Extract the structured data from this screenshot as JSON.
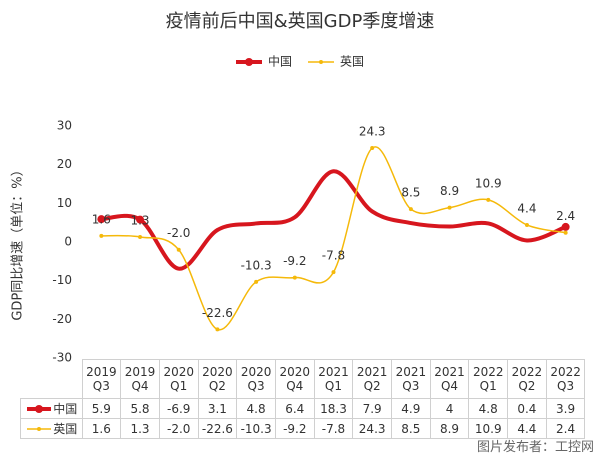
{
  "chart_data": {
    "type": "line",
    "title": "疫情前后中国&英国GDP季度增速",
    "y_label": "GDP同比增速（单位：%）",
    "categories": [
      "2019\nQ3",
      "2019\nQ4",
      "2020\nQ1",
      "2020\nQ2",
      "2020\nQ3",
      "2020\nQ4",
      "2021\nQ1",
      "2021\nQ2",
      "2021\nQ3",
      "2021\nQ4",
      "2022\nQ1",
      "2022\nQ2",
      "2022\nQ3"
    ],
    "series": [
      {
        "name": "中国",
        "color": "#d7161e",
        "values": [
          5.9,
          5.8,
          -6.9,
          3.1,
          4.8,
          6.4,
          18.3,
          7.9,
          4.9,
          4,
          4.8,
          0.4,
          3.9
        ]
      },
      {
        "name": "英国",
        "color": "#f5b90a",
        "values": [
          1.6,
          1.3,
          -2.0,
          -22.6,
          -10.3,
          -9.2,
          -7.8,
          24.3,
          8.5,
          8.9,
          10.9,
          4.4,
          2.4
        ],
        "value_labels": [
          "1.6",
          "1.3",
          "-2.0",
          "-22.6",
          "-10.3",
          "-9.2",
          "-7.8",
          "24.3",
          "8.5",
          "8.9",
          "10.9",
          "4.4",
          "2.4"
        ]
      }
    ],
    "ylim": [
      -30,
      30
    ],
    "yticks": [
      -30,
      -20,
      -10,
      0,
      10,
      20,
      30
    ],
    "grid": false,
    "legend": "top",
    "watermark": "图片发布者：工控网"
  }
}
